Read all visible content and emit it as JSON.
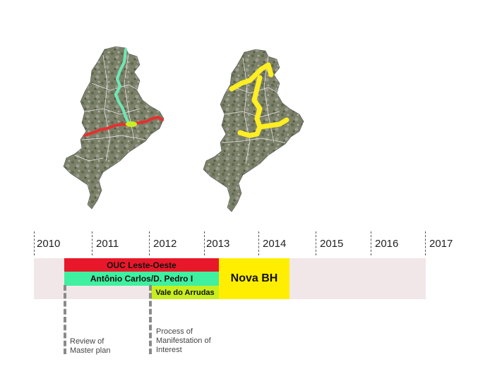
{
  "maps": [
    {
      "name": "operations-map",
      "route_colors": [
        "#6ee8b4",
        "#e53030",
        "#c8f020"
      ]
    },
    {
      "name": "nova-bh-map",
      "route_colors": [
        "#ffee22"
      ]
    }
  ],
  "timeline": {
    "years": [
      "2010",
      "2011",
      "2012",
      "2013",
      "2014",
      "2015",
      "2016",
      "2017"
    ],
    "bars": {
      "leste_oeste": {
        "label": "OUC Leste-Oeste",
        "color": "#e8182a"
      },
      "antonio_carlos": {
        "label": "Antônio Carlos/D. Pedro I",
        "color": "#3ff0a0"
      },
      "vale_arrudas": {
        "label": "Vale do Arrudas",
        "color": "#c8ee1e"
      },
      "nova_bh": {
        "label": "Nova BH",
        "color": "#ffee00"
      }
    },
    "band_color": "#f1e6e8",
    "markers": {
      "review": {
        "lines": [
          "Review of",
          "Master plan"
        ]
      },
      "manifestation": {
        "lines": [
          "Process of",
          "Manifestation of",
          "Interest"
        ]
      }
    }
  }
}
